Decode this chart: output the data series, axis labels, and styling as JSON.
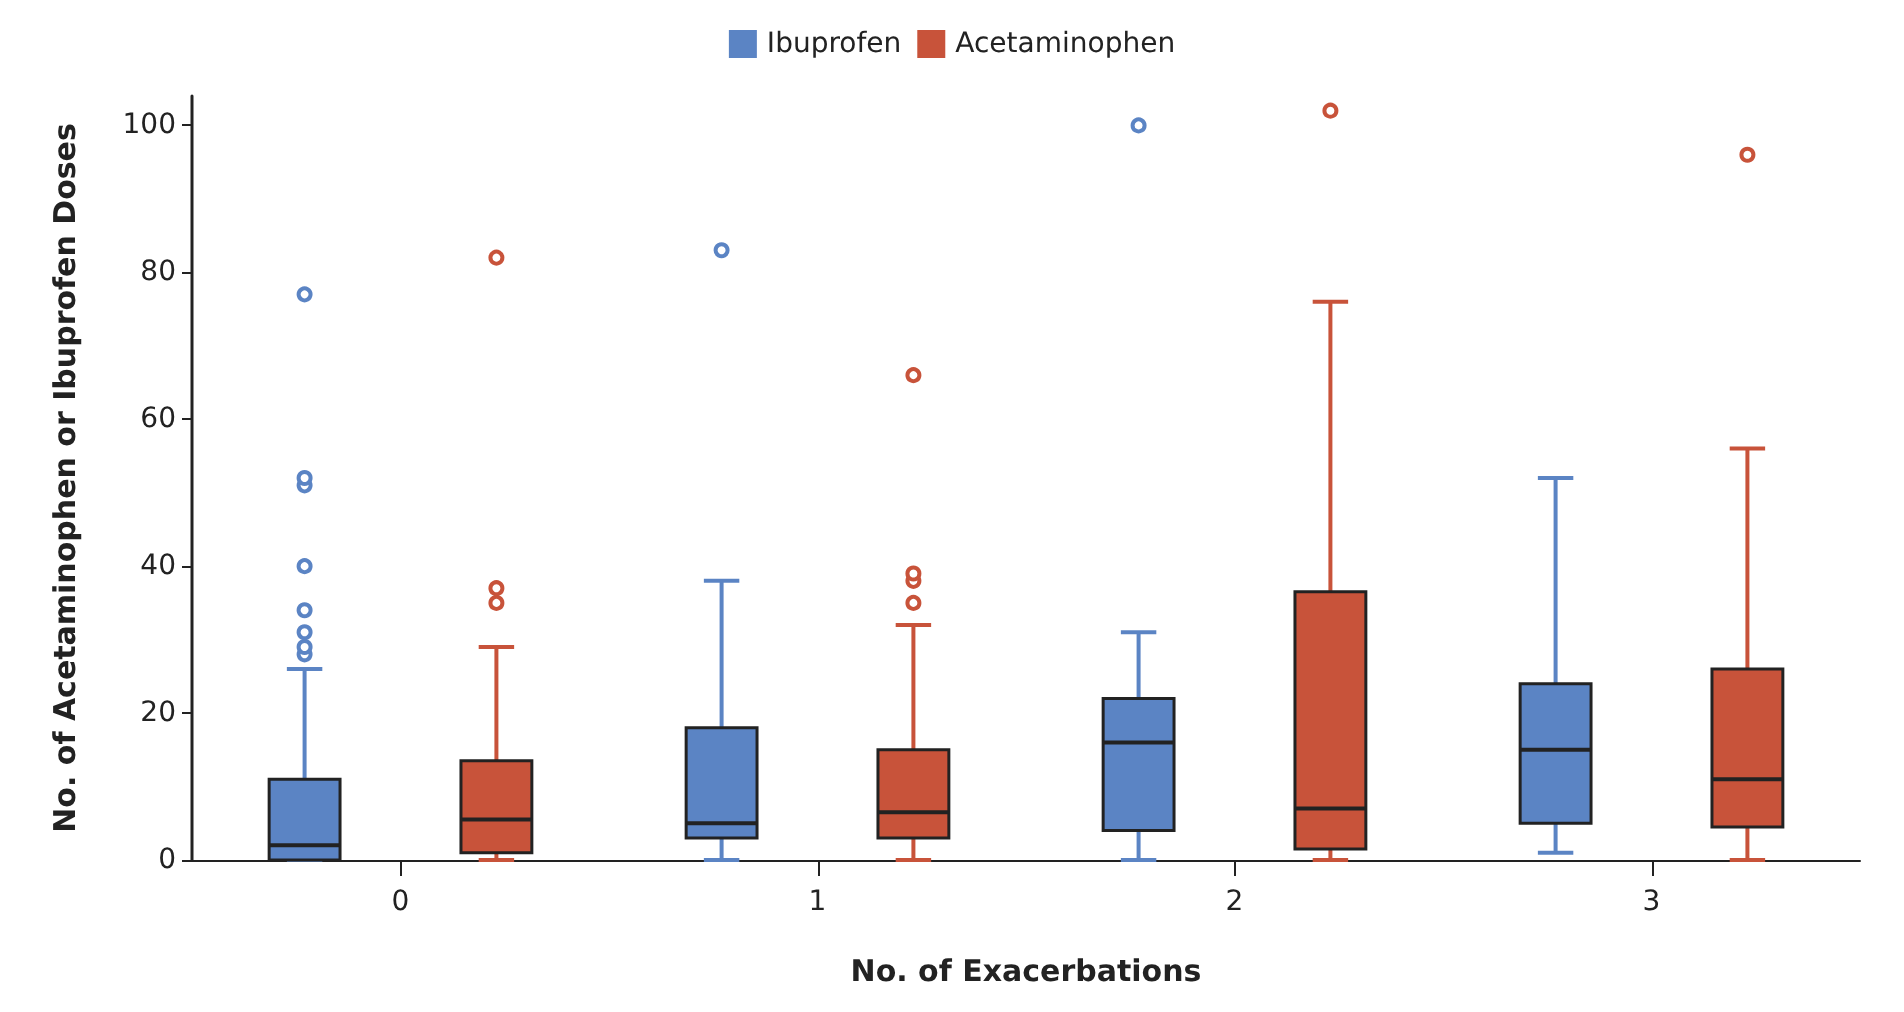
{
  "chart_data": {
    "type": "box",
    "xlabel": "No. of Exacerbations",
    "ylabel": "No. of Acetaminophen or Ibuprofen Doses",
    "categories": [
      "0",
      "1",
      "2",
      "3"
    ],
    "ylim": [
      0,
      104
    ],
    "yticks": [
      0,
      20,
      40,
      60,
      80,
      100
    ],
    "grid": false,
    "legend": "top",
    "marker": "circle",
    "series": [
      {
        "name": "Ibuprofen",
        "color": "#5b84c4",
        "boxes": [
          {
            "low": 0,
            "q1": 0,
            "median": 2,
            "q3": 11,
            "high": 26,
            "outliers": [
              28,
              29,
              31,
              34,
              40,
              51,
              52,
              77
            ]
          },
          {
            "low": 0,
            "q1": 3,
            "median": 5,
            "q3": 18,
            "high": 38,
            "outliers": [
              83
            ]
          },
          {
            "low": 0,
            "q1": 4,
            "median": 16,
            "q3": 22,
            "high": 31,
            "outliers": [
              100
            ]
          },
          {
            "low": 1,
            "q1": 5,
            "median": 15,
            "q3": 24,
            "high": 52
          }
        ]
      },
      {
        "name": "Acetaminophen",
        "color": "#c8533a",
        "boxes": [
          {
            "low": 0,
            "q1": 1,
            "median": 5.5,
            "q3": 13.5,
            "high": 29,
            "outliers": [
              35,
              37,
              82
            ]
          },
          {
            "low": 0,
            "q1": 3,
            "median": 6.5,
            "q3": 15,
            "high": 32,
            "outliers": [
              35,
              38,
              39,
              66
            ]
          },
          {
            "low": 0,
            "q1": 1.5,
            "median": 7,
            "q3": 36.5,
            "high": 76,
            "outliers": [
              102
            ]
          },
          {
            "low": 0,
            "q1": 4.5,
            "median": 11,
            "q3": 26,
            "high": 56,
            "outliers": [
              96
            ]
          }
        ]
      }
    ]
  }
}
